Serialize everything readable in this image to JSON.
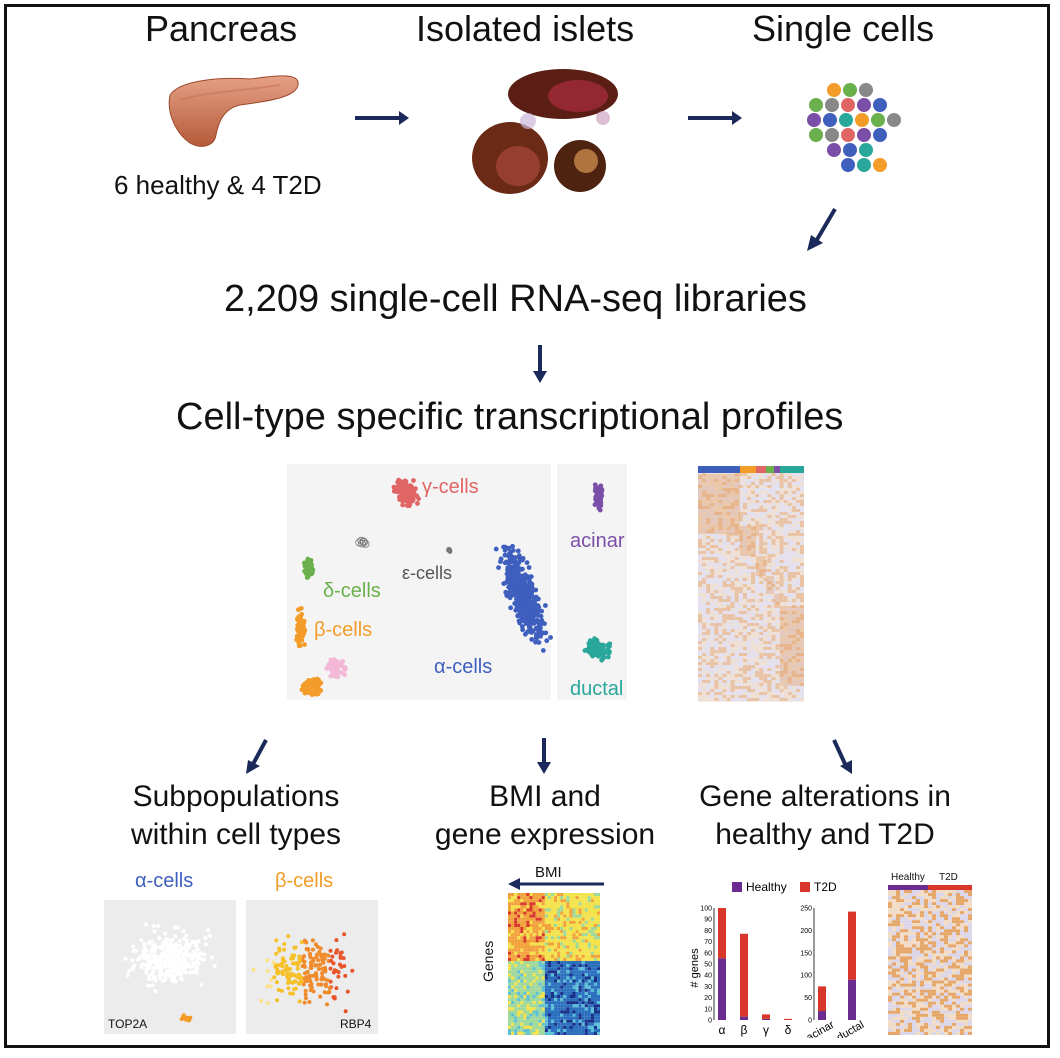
{
  "steps": {
    "pancreas_title": "Pancreas",
    "pancreas_caption": "6 healthy & 4 T2D",
    "islets_title": "Isolated islets",
    "cells_title": "Single cells",
    "libraries": "2,209 single-cell RNA-seq libraries",
    "profiles": "Cell-type specific transcriptional profiles"
  },
  "clusters": {
    "gamma": "γ-cells",
    "acinar": "acinar",
    "epsilon": "ε-cells",
    "delta": "δ-cells",
    "beta": "β-cells",
    "alpha": "α-cells",
    "ductal": "ductal",
    "colors": {
      "gamma": "#e06666",
      "acinar": "#7b4fa8",
      "epsilon": "#777777",
      "delta": "#6ab04c",
      "beta": "#f39c2a",
      "alpha": "#3f5fbf",
      "ductal": "#2aa79b",
      "pink": "#f2b8d6"
    }
  },
  "outcomes": {
    "subpop_title": [
      "Subpopulations",
      "within cell types"
    ],
    "bmi_title": [
      "BMI and",
      "gene expression"
    ],
    "alter_title": [
      "Gene alterations in",
      "healthy and T2D"
    ]
  },
  "subpop": {
    "alpha_label": "α-cells",
    "beta_label": "β-cells",
    "gene_left": "TOP2A",
    "gene_right": "RBP4"
  },
  "bmi": {
    "arrow_label": "BMI",
    "axis_label": "Genes"
  },
  "heatmap_small": {
    "healthy": "Healthy",
    "t2d": "T2D"
  },
  "chart_data": [
    {
      "type": "bar",
      "stacked": true,
      "categories": [
        "α",
        "β",
        "γ",
        "δ"
      ],
      "series": [
        {
          "name": "Healthy",
          "color": "#6a2c91",
          "values": [
            55,
            3,
            1,
            0
          ]
        },
        {
          "name": "T2D",
          "color": "#d9362b",
          "values": [
            45,
            74,
            4,
            1
          ]
        }
      ],
      "ylabel": "# genes",
      "ylim": [
        0,
        100
      ],
      "yticks": [
        "0",
        "10",
        "20",
        "30",
        "40",
        "50",
        "60",
        "70",
        "80",
        "90",
        "100"
      ]
    },
    {
      "type": "bar",
      "stacked": true,
      "categories": [
        "acinar",
        "ductal"
      ],
      "series": [
        {
          "name": "Healthy",
          "color": "#6a2c91",
          "values": [
            20,
            90
          ]
        },
        {
          "name": "T2D",
          "color": "#d9362b",
          "values": [
            55,
            152
          ]
        }
      ],
      "ylim": [
        0,
        250
      ],
      "yticks": [
        "0",
        "50",
        "100",
        "150",
        "200",
        "250"
      ]
    }
  ]
}
